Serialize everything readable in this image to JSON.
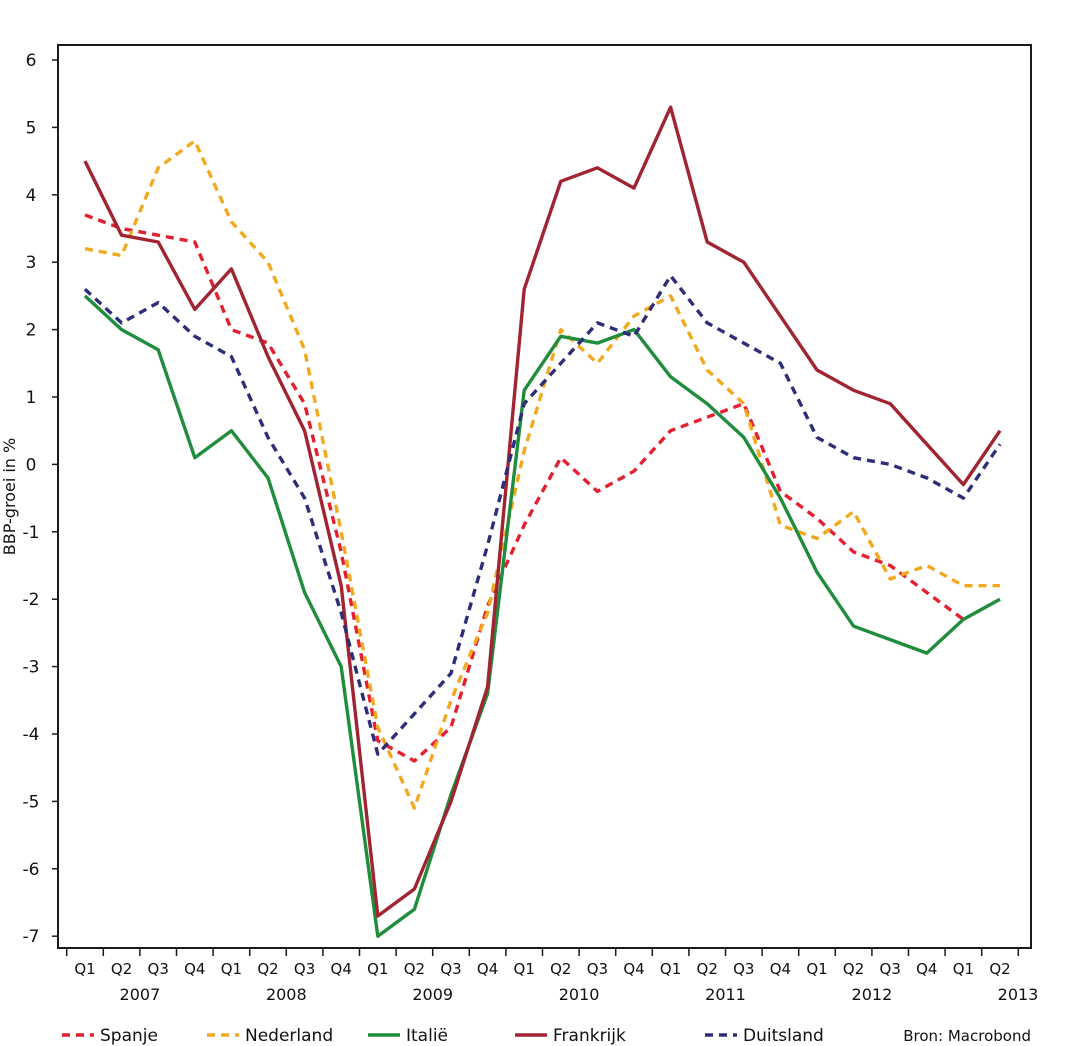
{
  "chart_data": {
    "type": "line",
    "ylabel": "BBP-groei in %",
    "xlabel": "",
    "source": "Bron: Macrobond",
    "ylim": [
      -7.2,
      6.2
    ],
    "yticks": [
      6,
      5,
      4,
      3,
      2,
      1,
      0,
      -1,
      -2,
      -3,
      -4,
      -5,
      -6,
      -7
    ],
    "quarters": [
      "Q1",
      "Q2",
      "Q3",
      "Q4",
      "Q1",
      "Q2",
      "Q3",
      "Q4",
      "Q1",
      "Q2",
      "Q3",
      "Q4",
      "Q1",
      "Q2",
      "Q3",
      "Q4",
      "Q1",
      "Q2",
      "Q3",
      "Q4",
      "Q1",
      "Q2",
      "Q3",
      "Q4",
      "Q1",
      "Q2"
    ],
    "years": [
      {
        "label": "2007",
        "start": 0,
        "end": 3
      },
      {
        "label": "2008",
        "start": 4,
        "end": 7
      },
      {
        "label": "2009",
        "start": 8,
        "end": 11
      },
      {
        "label": "2010",
        "start": 12,
        "end": 15
      },
      {
        "label": "2011",
        "start": 16,
        "end": 19
      },
      {
        "label": "2012",
        "start": 20,
        "end": 23
      },
      {
        "label": "2013",
        "start": 24,
        "end": 25
      }
    ],
    "series": [
      {
        "name": "Spanje",
        "color": "#e2202f",
        "dashed": true,
        "values": [
          3.7,
          3.5,
          3.4,
          3.3,
          2.0,
          1.8,
          0.9,
          -1.3,
          -4.1,
          -4.4,
          -3.9,
          -2.1,
          -0.9,
          0.1,
          -0.4,
          -0.1,
          0.5,
          0.7,
          0.9,
          -0.4,
          -0.8,
          -1.3,
          -1.5,
          -1.9,
          -2.3,
          null
        ]
      },
      {
        "name": "Nederland",
        "color": "#f2a91f",
        "dashed": true,
        "values": [
          3.2,
          3.1,
          4.4,
          4.8,
          3.6,
          3.0,
          1.7,
          -1.0,
          -3.9,
          -5.1,
          -3.5,
          -2.2,
          0.2,
          2.0,
          1.5,
          2.2,
          2.5,
          1.4,
          0.9,
          -0.9,
          -1.1,
          -0.7,
          -1.7,
          -1.5,
          -1.8,
          -1.8
        ]
      },
      {
        "name": "Italië",
        "color": "#1f8d3c",
        "dashed": false,
        "values": [
          2.5,
          2.0,
          1.7,
          0.1,
          0.5,
          -0.2,
          -1.9,
          -3.0,
          -7.0,
          -6.6,
          -4.9,
          -3.4,
          1.1,
          1.9,
          1.8,
          2.0,
          1.3,
          0.9,
          0.4,
          -0.5,
          -1.6,
          -2.4,
          -2.6,
          -2.8,
          -2.3,
          -2.0
        ]
      },
      {
        "name": "Frankrijk",
        "color": "#a02431",
        "dashed": false,
        "values": [
          4.5,
          3.4,
          3.3,
          2.3,
          2.9,
          1.6,
          0.5,
          -1.8,
          -6.7,
          -6.3,
          -5.0,
          -3.3,
          2.6,
          4.2,
          4.4,
          4.1,
          5.3,
          3.3,
          3.0,
          2.2,
          1.4,
          1.1,
          0.9,
          0.3,
          -0.3,
          0.5
        ]
      },
      {
        "name": "Duitsland",
        "color": "#2e2d7a",
        "dashed": true,
        "values": [
          2.6,
          2.1,
          2.4,
          1.9,
          1.6,
          0.4,
          -0.5,
          -2.2,
          -4.3,
          -3.7,
          -3.1,
          -1.2,
          0.9,
          1.5,
          2.1,
          1.9,
          2.8,
          2.1,
          1.8,
          1.5,
          0.4,
          0.1,
          0.0,
          -0.2,
          -0.5,
          0.3
        ]
      }
    ]
  }
}
